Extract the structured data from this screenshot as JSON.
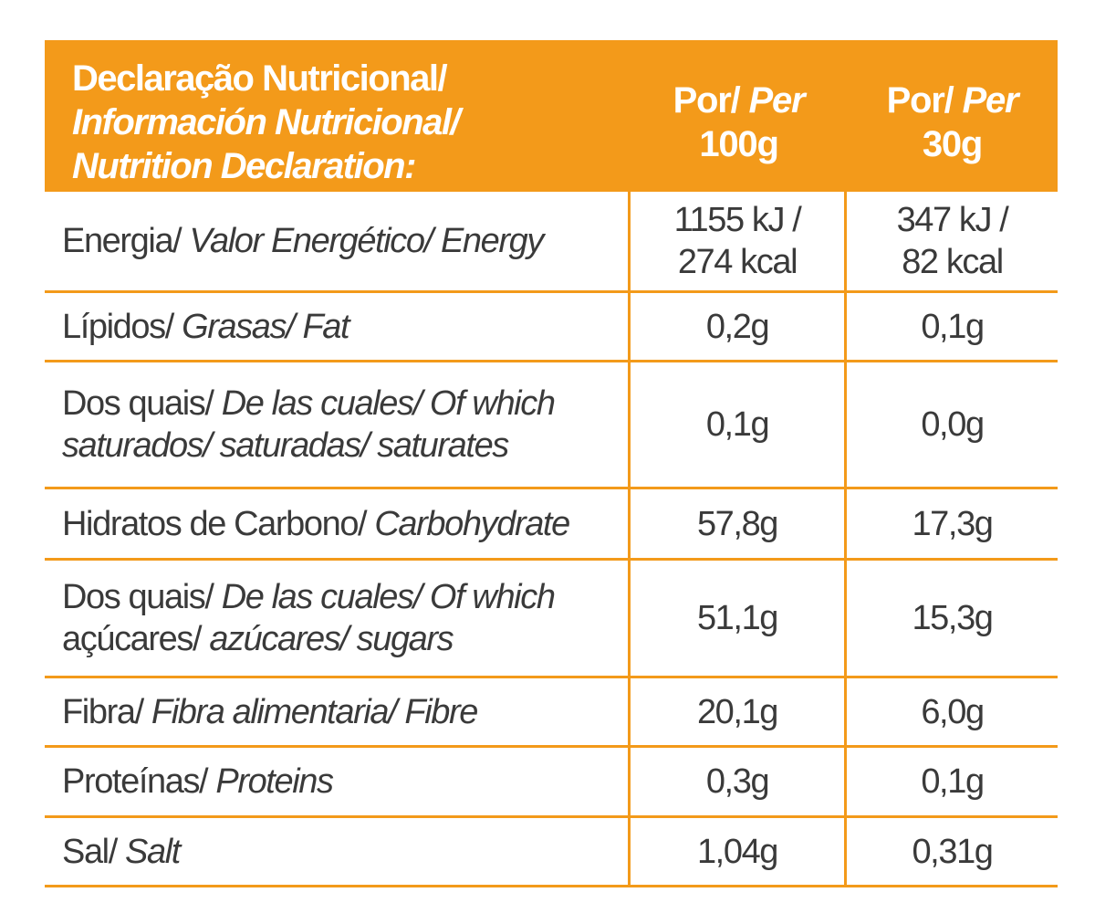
{
  "header": {
    "title_line1": "Declaração Nutricional/",
    "title_line2": "Información Nutricional/",
    "title_line3": "Nutrition Declaration:",
    "col1_line1_pt": "Por/ ",
    "col1_line1_en": "Per",
    "col1_line2": "100g",
    "col2_line1_pt": "Por/ ",
    "col2_line1_en": "Per",
    "col2_line2": "30g"
  },
  "rows": [
    {
      "label_pt": "Energia/ ",
      "label_es_en": "Valor Energético/ Energy",
      "per100_line1": "1155 kJ /",
      "per100_line2": "274 kcal",
      "per30_line1": "347 kJ /",
      "per30_line2": "82 kcal"
    },
    {
      "label_pt": "Lípidos/ ",
      "label_es_en": "Grasas/ Fat",
      "per100": "0,2g",
      "per30": "0,1g"
    },
    {
      "label_pt_line1": "Dos quais/ ",
      "label_es_en_line1": "De las cuales/ Of which",
      "label_pt_line2": "",
      "label_es_en_line2": "saturados/ saturadas/ saturates",
      "per100": "0,1g",
      "per30": "0,0g"
    },
    {
      "label_pt": "Hidratos de Carbono/ ",
      "label_es_en": "Carbohydrate",
      "per100": "57,8g",
      "per30": "17,3g"
    },
    {
      "label_pt_line1": "Dos quais/ ",
      "label_es_en_line1": "De las cuales/ Of which",
      "label_pt_line2": "açúcares/ ",
      "label_es_en_line2": "azúcares/ sugars",
      "per100": "51,1g",
      "per30": "15,3g"
    },
    {
      "label_pt": "Fibra/ ",
      "label_es_en": "Fibra alimentaria/ Fibre",
      "per100": "20,1g",
      "per30": "6,0g"
    },
    {
      "label_pt": "Proteínas/ ",
      "label_es_en": "Proteins",
      "per100": "0,3g",
      "per30": "0,1g"
    },
    {
      "label_pt": "Sal/ ",
      "label_es_en": "Salt",
      "per100": "1,04g",
      "per30": "0,31g"
    }
  ],
  "colors": {
    "accent": "#f39a1a",
    "text": "#3a3a3a",
    "header_text": "#ffffff"
  }
}
